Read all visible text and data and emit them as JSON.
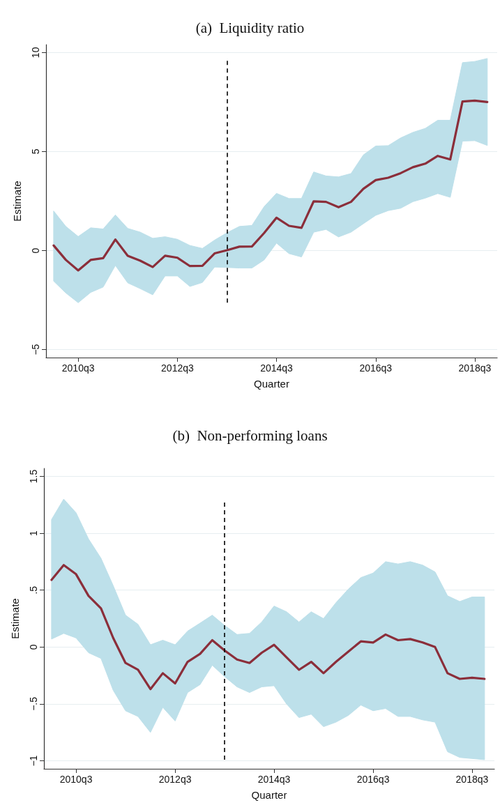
{
  "chart_data": [
    {
      "type": "line",
      "title": "(a)  Liquidity ratio",
      "xlabel": "Quarter",
      "ylabel": "Estimate",
      "grid": "y",
      "marker": "none",
      "line_style": "solid",
      "xlim": [
        "2009-11-06",
        "2018-12-13"
      ],
      "ylim": [
        -5.4,
        10.4
      ],
      "xticks": [
        {
          "value": "2010-07",
          "label": "2010q3"
        },
        {
          "value": "2012-07",
          "label": "2012q3"
        },
        {
          "value": "2014-07",
          "label": "2014q3"
        },
        {
          "value": "2016-07",
          "label": "2016q3"
        },
        {
          "value": "2018-07",
          "label": "2018q3"
        }
      ],
      "yticks": [
        {
          "value": -5,
          "label": "−5"
        },
        0,
        5,
        10
      ],
      "x": [
        "2010-01",
        "2010-04",
        "2010-07",
        "2010-10",
        "2011-01",
        "2011-04",
        "2011-07",
        "2011-10",
        "2012-01",
        "2012-04",
        "2012-07",
        "2012-10",
        "2013-01",
        "2013-04",
        "2013-07",
        "2013-10",
        "2014-01",
        "2014-04",
        "2014-07",
        "2014-10",
        "2015-01",
        "2015-04",
        "2015-07",
        "2015-10",
        "2016-01",
        "2016-04",
        "2016-07",
        "2016-10",
        "2017-01",
        "2017-04",
        "2017-07",
        "2017-10",
        "2018-01",
        "2018-04",
        "2018-07",
        "2018-10"
      ],
      "series": [
        {
          "color": "#8b2e3a",
          "values": [
            0.26,
            -0.47,
            -1.0,
            -0.47,
            -0.38,
            0.56,
            -0.26,
            -0.51,
            -0.83,
            -0.26,
            -0.36,
            -0.78,
            -0.77,
            -0.14,
            0.02,
            0.2,
            0.21,
            0.89,
            1.66,
            1.25,
            1.15,
            2.49,
            2.46,
            2.19,
            2.46,
            3.12,
            3.56,
            3.68,
            3.91,
            4.21,
            4.39,
            4.78,
            4.6,
            7.53,
            7.57,
            7.5
          ],
          "upper": [
            2.0,
            1.22,
            0.71,
            1.15,
            1.09,
            1.8,
            1.12,
            0.93,
            0.62,
            0.7,
            0.57,
            0.26,
            0.11,
            0.53,
            0.9,
            1.22,
            1.27,
            2.22,
            2.89,
            2.63,
            2.63,
            3.97,
            3.77,
            3.72,
            3.89,
            4.83,
            5.28,
            5.3,
            5.69,
            5.97,
            6.17,
            6.58,
            6.58,
            9.49,
            9.55,
            9.7
          ],
          "lower": [
            -1.54,
            -2.14,
            -2.63,
            -2.11,
            -1.84,
            -0.75,
            -1.63,
            -1.92,
            -2.23,
            -1.28,
            -1.28,
            -1.81,
            -1.61,
            -0.83,
            -0.85,
            -0.88,
            -0.88,
            -0.47,
            0.38,
            -0.15,
            -0.32,
            0.93,
            1.07,
            0.69,
            0.93,
            1.36,
            1.78,
            2.02,
            2.14,
            2.47,
            2.65,
            2.88,
            2.69,
            5.53,
            5.55,
            5.31
          ]
        }
      ],
      "ref_lines": [
        {
          "axis": "x",
          "value": "2013-07",
          "color": "#000000",
          "line_style": "dashed"
        }
      ]
    },
    {
      "type": "line",
      "title": "(b)  Non-performing loans",
      "xlabel": "Quarter",
      "ylabel": "Estimate",
      "grid": "y",
      "marker": "none",
      "line_style": "solid",
      "xlim": [
        "2009-11-06",
        "2018-12-13"
      ],
      "ylim": [
        -1.07,
        1.57
      ],
      "xticks": [
        {
          "value": "2010-07",
          "label": "2010q3"
        },
        {
          "value": "2012-07",
          "label": "2012q3"
        },
        {
          "value": "2014-07",
          "label": "2014q3"
        },
        {
          "value": "2016-07",
          "label": "2016q3"
        },
        {
          "value": "2018-07",
          "label": "2018q3"
        }
      ],
      "yticks": [
        {
          "value": -1,
          "label": "−1"
        },
        {
          "value": -0.5,
          "label": "−.5"
        },
        0,
        {
          "value": 0.5,
          "label": ".5"
        },
        1,
        1.5
      ],
      "x": [
        "2010-01",
        "2010-04",
        "2010-07",
        "2010-10",
        "2011-01",
        "2011-04",
        "2011-07",
        "2011-10",
        "2012-01",
        "2012-04",
        "2012-07",
        "2012-10",
        "2013-01",
        "2013-04",
        "2013-07",
        "2013-10",
        "2014-01",
        "2014-04",
        "2014-07",
        "2014-10",
        "2015-01",
        "2015-04",
        "2015-07",
        "2015-10",
        "2016-01",
        "2016-04",
        "2016-07",
        "2016-10",
        "2017-01",
        "2017-04",
        "2017-07",
        "2017-10",
        "2018-01",
        "2018-04",
        "2018-07",
        "2018-10"
      ],
      "series": [
        {
          "color": "#8b2e3a",
          "values": [
            0.59,
            0.72,
            0.64,
            0.45,
            0.34,
            0.08,
            -0.14,
            -0.2,
            -0.37,
            -0.23,
            -0.32,
            -0.13,
            -0.06,
            0.06,
            -0.03,
            -0.11,
            -0.14,
            -0.05,
            0.02,
            -0.09,
            -0.2,
            -0.13,
            -0.23,
            -0.13,
            -0.04,
            0.05,
            0.04,
            0.11,
            0.06,
            0.07,
            0.04,
            0.0,
            -0.23,
            -0.28,
            -0.27,
            -0.28
          ],
          "upper": [
            1.12,
            1.3,
            1.18,
            0.95,
            0.78,
            0.54,
            0.28,
            0.2,
            0.02,
            0.06,
            0.02,
            0.14,
            0.21,
            0.28,
            0.19,
            0.11,
            0.12,
            0.22,
            0.36,
            0.31,
            0.22,
            0.31,
            0.25,
            0.39,
            0.51,
            0.61,
            0.65,
            0.75,
            0.73,
            0.75,
            0.72,
            0.66,
            0.45,
            0.4,
            0.44,
            0.44
          ],
          "lower": [
            0.07,
            0.12,
            0.08,
            -0.05,
            -0.1,
            -0.38,
            -0.56,
            -0.61,
            -0.75,
            -0.53,
            -0.65,
            -0.4,
            -0.33,
            -0.16,
            -0.26,
            -0.35,
            -0.4,
            -0.35,
            -0.34,
            -0.5,
            -0.62,
            -0.59,
            -0.7,
            -0.66,
            -0.6,
            -0.51,
            -0.56,
            -0.54,
            -0.61,
            -0.61,
            -0.64,
            -0.66,
            -0.92,
            -0.97,
            -0.98,
            -0.99
          ]
        }
      ],
      "ref_lines": [
        {
          "axis": "x",
          "value": "2013-07",
          "color": "#000000",
          "line_style": "dashed"
        }
      ]
    }
  ]
}
